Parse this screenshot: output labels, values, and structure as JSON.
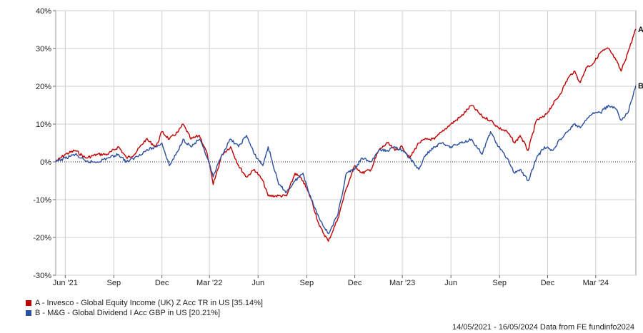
{
  "chart_data": {
    "type": "line",
    "x_ticks": [
      "Jun '21",
      "Sep",
      "Dec",
      "Mar '22",
      "Jun",
      "Sep",
      "Dec",
      "Mar '23",
      "Jun",
      "Sep",
      "Dec",
      "Mar '24"
    ],
    "x_tick_dates": [
      "2021-06-01",
      "2021-09-01",
      "2021-12-01",
      "2022-03-01",
      "2022-06-01",
      "2022-09-01",
      "2022-12-01",
      "2023-03-01",
      "2023-06-01",
      "2023-09-01",
      "2023-12-01",
      "2024-03-01"
    ],
    "x_range": [
      "2021-05-14",
      "2024-05-16"
    ],
    "y_ticks": [
      "40%",
      "30%",
      "20%",
      "10%",
      "0%",
      "-10%",
      "-20%",
      "-30%"
    ],
    "ylim": [
      -30,
      40
    ],
    "zero_line": "dotted",
    "colors": {
      "A": "#c00000",
      "B": "#2a4ea0"
    },
    "series": [
      {
        "name": "A - Invesco - Global Equity Income (UK) Z Acc TR in US [35.14%]",
        "end_label": "A",
        "color": "#c00000",
        "points": [
          [
            "2021-05-14",
            0
          ],
          [
            "2021-06-01",
            2
          ],
          [
            "2021-06-20",
            3
          ],
          [
            "2021-07-10",
            1
          ],
          [
            "2021-08-01",
            2
          ],
          [
            "2021-08-20",
            2
          ],
          [
            "2021-09-10",
            4
          ],
          [
            "2021-09-25",
            1
          ],
          [
            "2021-10-10",
            2
          ],
          [
            "2021-11-01",
            6
          ],
          [
            "2021-11-20",
            4
          ],
          [
            "2021-12-01",
            8
          ],
          [
            "2021-12-15",
            6
          ],
          [
            "2022-01-01",
            8
          ],
          [
            "2022-01-10",
            10
          ],
          [
            "2022-01-25",
            6
          ],
          [
            "2022-02-10",
            7
          ],
          [
            "2022-02-25",
            2
          ],
          [
            "2022-03-08",
            -6
          ],
          [
            "2022-03-25",
            2
          ],
          [
            "2022-04-10",
            4
          ],
          [
            "2022-04-25",
            -1
          ],
          [
            "2022-05-10",
            -4
          ],
          [
            "2022-05-25",
            -2
          ],
          [
            "2022-06-10",
            -5
          ],
          [
            "2022-06-20",
            -9
          ],
          [
            "2022-07-10",
            -9
          ],
          [
            "2022-07-25",
            -9
          ],
          [
            "2022-08-10",
            -3
          ],
          [
            "2022-08-25",
            -5
          ],
          [
            "2022-09-10",
            -10
          ],
          [
            "2022-09-25",
            -17
          ],
          [
            "2022-10-12",
            -21
          ],
          [
            "2022-10-30",
            -15
          ],
          [
            "2022-11-15",
            -7
          ],
          [
            "2022-12-01",
            -1
          ],
          [
            "2022-12-15",
            -3
          ],
          [
            "2023-01-01",
            -2
          ],
          [
            "2023-01-15",
            3
          ],
          [
            "2023-02-01",
            5
          ],
          [
            "2023-02-15",
            3
          ],
          [
            "2023-03-01",
            4
          ],
          [
            "2023-03-15",
            1
          ],
          [
            "2023-04-01",
            5
          ],
          [
            "2023-04-15",
            6
          ],
          [
            "2023-05-01",
            6
          ],
          [
            "2023-05-15",
            8
          ],
          [
            "2023-06-01",
            10
          ],
          [
            "2023-06-20",
            12
          ],
          [
            "2023-07-10",
            15
          ],
          [
            "2023-07-30",
            12
          ],
          [
            "2023-08-15",
            11
          ],
          [
            "2023-08-30",
            9
          ],
          [
            "2023-09-15",
            8
          ],
          [
            "2023-09-30",
            5
          ],
          [
            "2023-10-10",
            7
          ],
          [
            "2023-10-25",
            3
          ],
          [
            "2023-11-10",
            11
          ],
          [
            "2023-11-25",
            12
          ],
          [
            "2023-12-10",
            15
          ],
          [
            "2023-12-25",
            18
          ],
          [
            "2024-01-08",
            22
          ],
          [
            "2024-01-20",
            24
          ],
          [
            "2024-02-01",
            21
          ],
          [
            "2024-02-12",
            25
          ],
          [
            "2024-02-25",
            26
          ],
          [
            "2024-03-10",
            29
          ],
          [
            "2024-03-25",
            30
          ],
          [
            "2024-04-08",
            27
          ],
          [
            "2024-04-18",
            24
          ],
          [
            "2024-05-01",
            29
          ],
          [
            "2024-05-16",
            35.14
          ]
        ]
      },
      {
        "name": "B - M&G - Global Dividend I Acc GBP in US [20.21%]",
        "end_label": "B",
        "color": "#2a4ea0",
        "points": [
          [
            "2021-05-14",
            0
          ],
          [
            "2021-06-01",
            1
          ],
          [
            "2021-06-20",
            2
          ],
          [
            "2021-07-10",
            0
          ],
          [
            "2021-08-01",
            0
          ],
          [
            "2021-08-20",
            1
          ],
          [
            "2021-09-10",
            2
          ],
          [
            "2021-09-25",
            0
          ],
          [
            "2021-10-10",
            1
          ],
          [
            "2021-11-01",
            3
          ],
          [
            "2021-11-20",
            4
          ],
          [
            "2021-12-01",
            5
          ],
          [
            "2021-12-15",
            -1
          ],
          [
            "2022-01-01",
            3
          ],
          [
            "2022-01-10",
            6
          ],
          [
            "2022-01-25",
            4
          ],
          [
            "2022-02-10",
            6
          ],
          [
            "2022-02-25",
            1
          ],
          [
            "2022-03-08",
            -4
          ],
          [
            "2022-03-25",
            2
          ],
          [
            "2022-04-10",
            6
          ],
          [
            "2022-04-25",
            4
          ],
          [
            "2022-05-10",
            7
          ],
          [
            "2022-05-25",
            2
          ],
          [
            "2022-06-10",
            -1
          ],
          [
            "2022-06-20",
            4
          ],
          [
            "2022-07-10",
            -6
          ],
          [
            "2022-07-25",
            -8
          ],
          [
            "2022-08-10",
            -5
          ],
          [
            "2022-08-25",
            -3
          ],
          [
            "2022-09-10",
            -10
          ],
          [
            "2022-09-25",
            -15
          ],
          [
            "2022-10-12",
            -19
          ],
          [
            "2022-10-30",
            -14
          ],
          [
            "2022-11-15",
            -3
          ],
          [
            "2022-12-01",
            -2
          ],
          [
            "2022-12-15",
            1
          ],
          [
            "2023-01-01",
            0
          ],
          [
            "2023-01-15",
            3
          ],
          [
            "2023-02-01",
            3
          ],
          [
            "2023-02-15",
            4
          ],
          [
            "2023-03-01",
            3
          ],
          [
            "2023-03-15",
            1
          ],
          [
            "2023-04-01",
            -2
          ],
          [
            "2023-04-15",
            2
          ],
          [
            "2023-05-01",
            4
          ],
          [
            "2023-05-15",
            5
          ],
          [
            "2023-06-01",
            4
          ],
          [
            "2023-06-20",
            5
          ],
          [
            "2023-07-10",
            6
          ],
          [
            "2023-07-30",
            2
          ],
          [
            "2023-08-15",
            8
          ],
          [
            "2023-08-30",
            4
          ],
          [
            "2023-09-15",
            1
          ],
          [
            "2023-09-30",
            -3
          ],
          [
            "2023-10-10",
            -2
          ],
          [
            "2023-10-25",
            -5
          ],
          [
            "2023-11-10",
            1
          ],
          [
            "2023-11-25",
            4
          ],
          [
            "2023-12-10",
            3
          ],
          [
            "2023-12-25",
            6
          ],
          [
            "2024-01-08",
            8
          ],
          [
            "2024-01-20",
            10
          ],
          [
            "2024-02-01",
            9
          ],
          [
            "2024-02-12",
            11
          ],
          [
            "2024-02-25",
            13
          ],
          [
            "2024-03-10",
            13
          ],
          [
            "2024-03-25",
            15
          ],
          [
            "2024-04-08",
            14
          ],
          [
            "2024-04-18",
            11
          ],
          [
            "2024-05-01",
            13
          ],
          [
            "2024-05-16",
            20.21
          ]
        ]
      }
    ]
  },
  "legend": {
    "items": [
      {
        "label": "A - Invesco - Global Equity Income (UK) Z Acc TR in US [35.14%]",
        "color": "#c00000"
      },
      {
        "label": "B - M&G - Global Dividend I Acc GBP in US [20.21%]",
        "color": "#2a4ea0"
      }
    ]
  },
  "footer": {
    "text": "14/05/2021 - 16/05/2024 Data from FE fundinfo2024"
  }
}
